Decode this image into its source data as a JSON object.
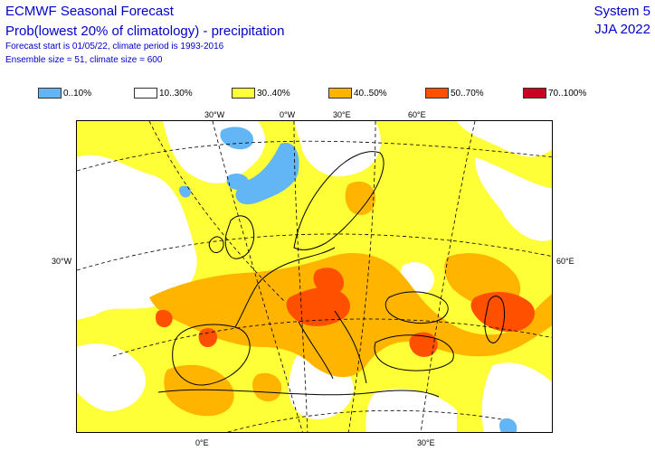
{
  "header": {
    "title": "ECMWF Seasonal Forecast",
    "subtitle": "Prob(lowest 20% of climatology) - precipitation",
    "forecast_info": "Forecast start is 01/05/22, climate period is 1993-2016",
    "ensemble_info": "Ensemble size = 51, climate size = 600",
    "system": "System 5",
    "season": "JJA 2022"
  },
  "legend": {
    "items": [
      {
        "label": "0..10%",
        "color": "#62b6f5"
      },
      {
        "label": "10..30%",
        "color": "#ffffff"
      },
      {
        "label": "30..40%",
        "color": "#ffff38"
      },
      {
        "label": "40..50%",
        "color": "#ffb400"
      },
      {
        "label": "50..70%",
        "color": "#ff5000"
      },
      {
        "label": "70..100%",
        "color": "#cc0022"
      }
    ]
  },
  "axes": {
    "top_labels": [
      "30°W",
      "0°W",
      "30°E",
      "60°E"
    ],
    "bottom_labels": [
      "0°E",
      "30°E"
    ],
    "left_labels": [
      "30°W"
    ],
    "right_labels": [
      "60°E"
    ]
  },
  "colors": {
    "text": "#0000cc",
    "coast": "#000000",
    "grid": "#000000"
  }
}
